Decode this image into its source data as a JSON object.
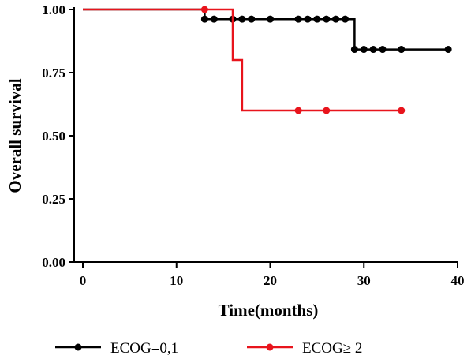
{
  "chart_data": {
    "type": "line",
    "xlabel": "Time(months)",
    "ylabel": "Overall survival",
    "xlim": [
      0,
      40
    ],
    "ylim": [
      0,
      1
    ],
    "x_ticks": [
      "0",
      "10",
      "20",
      "30",
      "40"
    ],
    "y_ticks": [
      "0.00",
      "0.25",
      "0.50",
      "0.75",
      "1.00"
    ],
    "x_tick_values": [
      0,
      10,
      20,
      30,
      40
    ],
    "y_tick_values": [
      0,
      0.25,
      0.5,
      0.75,
      1.0
    ],
    "grid": false,
    "legend_position": "bottom",
    "series": [
      {
        "name": "ECOG=0,1",
        "color": "#000000",
        "step": [
          [
            0,
            1.0
          ],
          [
            13,
            1.0
          ],
          [
            13,
            0.962
          ],
          [
            29,
            0.962
          ],
          [
            29,
            0.842
          ],
          [
            39,
            0.842
          ]
        ],
        "censored": [
          [
            13,
            0.962
          ],
          [
            14,
            0.962
          ],
          [
            16,
            0.962
          ],
          [
            17,
            0.962
          ],
          [
            18,
            0.962
          ],
          [
            20,
            0.962
          ],
          [
            23,
            0.962
          ],
          [
            24,
            0.962
          ],
          [
            25,
            0.962
          ],
          [
            26,
            0.962
          ],
          [
            27,
            0.962
          ],
          [
            28,
            0.962
          ],
          [
            29,
            0.842
          ],
          [
            30,
            0.842
          ],
          [
            31,
            0.842
          ],
          [
            32,
            0.842
          ],
          [
            34,
            0.842
          ],
          [
            39,
            0.842
          ]
        ]
      },
      {
        "name": "ECOG≥ 2",
        "color": "#e8141c",
        "step": [
          [
            0,
            1.0
          ],
          [
            16,
            1.0
          ],
          [
            16,
            0.8
          ],
          [
            17,
            0.8
          ],
          [
            17,
            0.6
          ],
          [
            34,
            0.6
          ]
        ],
        "censored": [
          [
            13,
            1.0
          ],
          [
            23,
            0.6
          ],
          [
            26,
            0.6
          ],
          [
            34,
            0.6
          ]
        ]
      }
    ]
  }
}
